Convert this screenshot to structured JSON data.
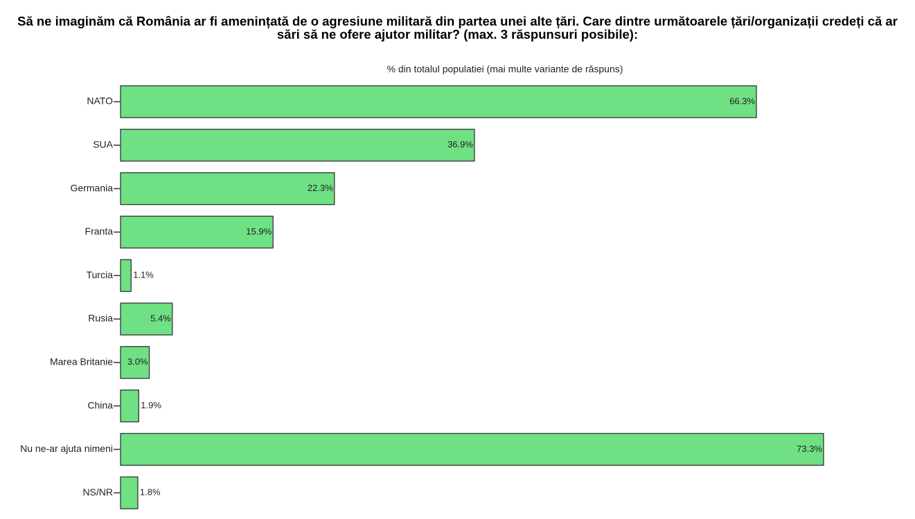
{
  "chart_data": {
    "type": "bar",
    "orientation": "horizontal",
    "title": "Să ne imaginăm că România ar fi amenințată de o agresiune militară din partea unei alte țări. Care dintre următoarele țări/organizații credeți că ar sări să ne ofere ajutor militar? (max. 3 răspunsuri posibile):",
    "subtitle": "% din totalul populatiei (mai multe variante de răspuns)",
    "categories": [
      "NATO",
      "SUA",
      "Germania",
      "Franta",
      "Turcia",
      "Rusia",
      "Marea Britanie",
      "China",
      "Nu ne-ar ajuta nimeni",
      "NS/NR"
    ],
    "values": [
      66.3,
      36.9,
      22.3,
      15.9,
      1.1,
      5.4,
      3.0,
      1.9,
      73.3,
      1.8
    ],
    "value_labels": [
      "66.3%",
      "36.9%",
      "22.3%",
      "15.9%",
      "1.1%",
      "5.4%",
      "3.0%",
      "1.9%",
      "73.3%",
      "1.8%"
    ],
    "color": "#6fe084"
  }
}
